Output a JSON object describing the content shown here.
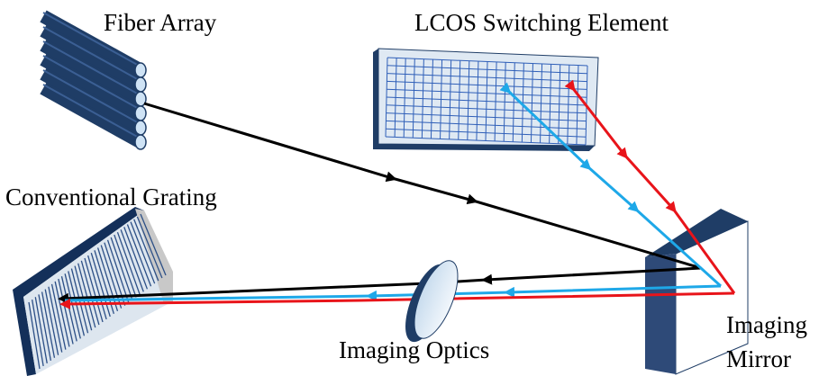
{
  "labels": {
    "fiber_array": "Fiber Array",
    "lcos": "LCOS Switching Element",
    "grating": "Conventional Grating",
    "optics": "Imaging Optics",
    "mirror": [
      "Imaging",
      "Mirror"
    ]
  }
}
